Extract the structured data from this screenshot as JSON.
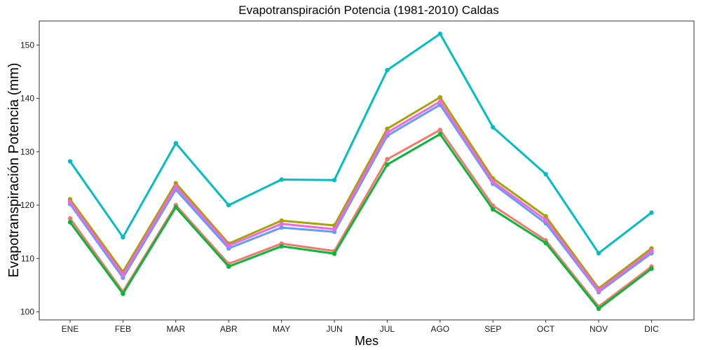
{
  "chart_data": {
    "type": "line",
    "title": "Evapotranspiración Potencia (1981-2010)  Caldas",
    "xlabel": "Mes",
    "ylabel": "Evapotranspiración Potencia  (mm)",
    "categories": [
      "ENE",
      "FEB",
      "MAR",
      "ABR",
      "MAY",
      "JUN",
      "JUL",
      "AGO",
      "SEP",
      "OCT",
      "NOV",
      "DIC"
    ],
    "yticks": [
      100,
      110,
      120,
      130,
      140,
      150
    ],
    "ylim": [
      98.5,
      154.5
    ],
    "grid": false,
    "legend": "none",
    "series": [
      {
        "color": "#F8766D",
        "values": [
          117.5,
          103.8,
          120.0,
          109.0,
          112.8,
          111.4,
          128.6,
          134.1,
          119.9,
          113.4,
          101.0,
          108.5
        ]
      },
      {
        "color": "#A3A500",
        "values": [
          121.1,
          107.5,
          124.1,
          112.8,
          117.1,
          116.2,
          134.3,
          140.2,
          125.0,
          117.9,
          104.4,
          111.9
        ]
      },
      {
        "color": "#00BA38",
        "values": [
          116.8,
          103.4,
          119.6,
          108.5,
          112.3,
          110.9,
          127.6,
          133.3,
          119.2,
          112.9,
          100.6,
          108.1
        ]
      },
      {
        "color": "#00BFC4",
        "values": [
          128.2,
          114.0,
          131.6,
          120.0,
          124.8,
          124.7,
          145.3,
          152.1,
          134.6,
          125.8,
          111.0,
          118.6
        ]
      },
      {
        "color": "#619CFF",
        "values": [
          120.2,
          106.4,
          122.9,
          111.9,
          115.8,
          115.0,
          133.0,
          138.8,
          124.0,
          116.6,
          103.7,
          111.0
        ]
      },
      {
        "color": "#F564E3",
        "values": [
          120.6,
          106.9,
          123.5,
          112.4,
          116.5,
          115.5,
          133.6,
          139.4,
          124.4,
          117.2,
          104.0,
          111.4
        ]
      }
    ]
  }
}
